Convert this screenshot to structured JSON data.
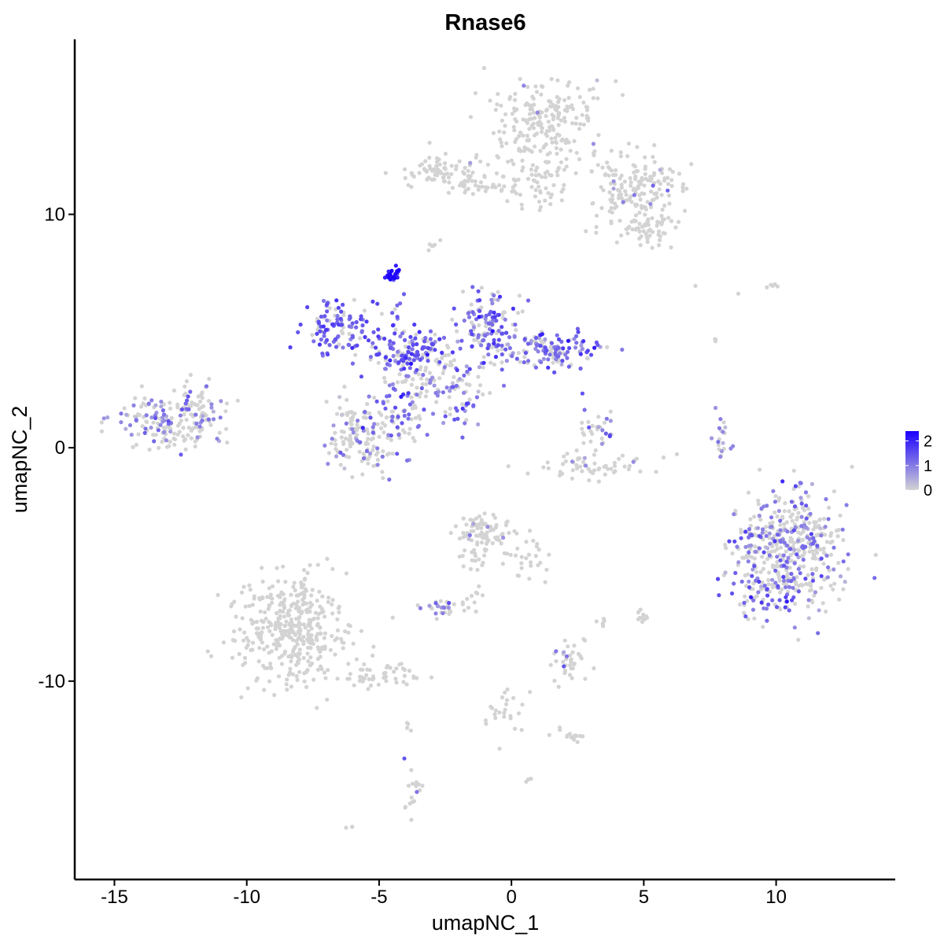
{
  "chart_data": {
    "type": "scatter",
    "title": "Rnase6",
    "xlabel": "umapNC_1",
    "ylabel": "umapNC_2",
    "xlim": [
      -16.5,
      14.5
    ],
    "ylim": [
      -18.5,
      17.5
    ],
    "x_ticks": [
      {
        "value": -15,
        "label": "-15"
      },
      {
        "value": -10,
        "label": "-10"
      },
      {
        "value": -5,
        "label": "-5"
      },
      {
        "value": 0,
        "label": "0"
      },
      {
        "value": 5,
        "label": "5"
      },
      {
        "value": 10,
        "label": "10"
      }
    ],
    "y_ticks": [
      {
        "value": 10,
        "label": "10"
      },
      {
        "value": 0,
        "label": "0"
      },
      {
        "value": -10,
        "label": "-10"
      }
    ],
    "grid": false,
    "legend": {
      "placement": "right",
      "type": "colorbar",
      "low_color": "#d3d3d3",
      "high_color": "#1a00ff",
      "range": [
        0,
        2.4
      ],
      "ticks": [
        {
          "value": 0,
          "label": "0"
        },
        {
          "value": 1,
          "label": "1"
        },
        {
          "value": 2,
          "label": "2"
        }
      ]
    },
    "point_color_low": "#d3d3d3",
    "point_color_high": "#1a00ff",
    "clusters": [
      {
        "cx": 1.2,
        "cy": 14.0,
        "sx": 1.1,
        "sy": 1.0,
        "n": 220,
        "expr_frac": 0.03,
        "expr_mean": 0.8
      },
      {
        "cx": 4.8,
        "cy": 11.1,
        "sx": 1.0,
        "sy": 0.7,
        "n": 160,
        "expr_frac": 0.03,
        "expr_mean": 0.8
      },
      {
        "cx": 5.2,
        "cy": 9.4,
        "sx": 0.6,
        "sy": 0.4,
        "n": 60,
        "expr_frac": 0.0,
        "expr_mean": 0.0
      },
      {
        "cx": -2.5,
        "cy": 11.7,
        "sx": 0.9,
        "sy": 0.4,
        "n": 90,
        "expr_frac": 0.03,
        "expr_mean": 0.8
      },
      {
        "cx": 1.0,
        "cy": 11.2,
        "sx": 0.7,
        "sy": 0.5,
        "n": 50,
        "expr_frac": 0.0,
        "expr_mean": 0.0
      },
      {
        "cx": -1.2,
        "cy": 11.2,
        "sx": 0.8,
        "sy": 0.15,
        "n": 25,
        "expr_frac": 0.0,
        "expr_mean": 0.0
      },
      {
        "cx": -2.9,
        "cy": 8.7,
        "sx": 0.15,
        "sy": 0.2,
        "n": 8,
        "expr_frac": 0.0,
        "expr_mean": 0.0
      },
      {
        "cx": -13.0,
        "cy": 1.1,
        "sx": 1.1,
        "sy": 0.55,
        "n": 170,
        "expr_frac": 0.35,
        "expr_mean": 0.9
      },
      {
        "cx": -11.8,
        "cy": 2.1,
        "sx": 0.5,
        "sy": 0.4,
        "n": 30,
        "expr_frac": 0.2,
        "expr_mean": 0.8
      },
      {
        "cx": -6.5,
        "cy": 5.2,
        "sx": 0.7,
        "sy": 0.6,
        "n": 110,
        "expr_frac": 0.75,
        "expr_mean": 1.3
      },
      {
        "cx": -4.0,
        "cy": 4.1,
        "sx": 1.0,
        "sy": 0.45,
        "n": 140,
        "expr_frac": 0.7,
        "expr_mean": 1.3
      },
      {
        "cx": -4.5,
        "cy": 7.4,
        "sx": 0.12,
        "sy": 0.12,
        "n": 22,
        "expr_frac": 1.0,
        "expr_mean": 2.3
      },
      {
        "cx": -4.3,
        "cy": 5.8,
        "sx": 0.1,
        "sy": 0.5,
        "n": 10,
        "expr_frac": 0.8,
        "expr_mean": 1.2
      },
      {
        "cx": -0.9,
        "cy": 5.3,
        "sx": 0.6,
        "sy": 0.7,
        "n": 120,
        "expr_frac": 0.6,
        "expr_mean": 1.2
      },
      {
        "cx": 1.4,
        "cy": 4.2,
        "sx": 0.9,
        "sy": 0.4,
        "n": 140,
        "expr_frac": 0.6,
        "expr_mean": 1.2
      },
      {
        "cx": -2.6,
        "cy": 2.8,
        "sx": 0.9,
        "sy": 0.6,
        "n": 100,
        "expr_frac": 0.35,
        "expr_mean": 1.0
      },
      {
        "cx": -5.7,
        "cy": 0.6,
        "sx": 0.8,
        "sy": 0.8,
        "n": 150,
        "expr_frac": 0.25,
        "expr_mean": 1.0
      },
      {
        "cx": -4.3,
        "cy": 1.6,
        "sx": 0.5,
        "sy": 1.0,
        "n": 60,
        "expr_frac": 0.55,
        "expr_mean": 1.2
      },
      {
        "cx": -2.1,
        "cy": 1.5,
        "sx": 0.5,
        "sy": 0.5,
        "n": 20,
        "expr_frac": 0.6,
        "expr_mean": 1.1
      },
      {
        "cx": 3.2,
        "cy": 0.8,
        "sx": 0.35,
        "sy": 0.5,
        "n": 30,
        "expr_frac": 0.4,
        "expr_mean": 1.1
      },
      {
        "cx": 3.3,
        "cy": -0.8,
        "sx": 1.0,
        "sy": 0.3,
        "n": 60,
        "expr_frac": 0.1,
        "expr_mean": 0.8
      },
      {
        "cx": 8.0,
        "cy": 0.4,
        "sx": 0.2,
        "sy": 0.6,
        "n": 20,
        "expr_frac": 0.7,
        "expr_mean": 1.0
      },
      {
        "cx": 10.6,
        "cy": -4.4,
        "sx": 1.0,
        "sy": 1.3,
        "n": 420,
        "expr_frac": 0.35,
        "expr_mean": 1.0
      },
      {
        "cx": -8.2,
        "cy": -7.8,
        "sx": 1.0,
        "sy": 1.2,
        "n": 400,
        "expr_frac": 0.0,
        "expr_mean": 0.0
      },
      {
        "cx": -5.0,
        "cy": -9.8,
        "sx": 0.9,
        "sy": 0.3,
        "n": 50,
        "expr_frac": 0.0,
        "expr_mean": 0.0
      },
      {
        "cx": -1.1,
        "cy": -3.7,
        "sx": 0.4,
        "sy": 0.55,
        "n": 90,
        "expr_frac": 0.03,
        "expr_mean": 0.8
      },
      {
        "cx": 0.7,
        "cy": -4.6,
        "sx": 0.5,
        "sy": 0.5,
        "n": 30,
        "expr_frac": 0.0,
        "expr_mean": 0.0
      },
      {
        "cx": -1.5,
        "cy": -5.5,
        "sx": 0.25,
        "sy": 0.8,
        "n": 20,
        "expr_frac": 0.0,
        "expr_mean": 0.0
      },
      {
        "cx": -2.6,
        "cy": -6.8,
        "sx": 0.4,
        "sy": 0.2,
        "n": 30,
        "expr_frac": 0.3,
        "expr_mean": 0.9
      },
      {
        "cx": 2.3,
        "cy": -9.1,
        "sx": 0.5,
        "sy": 0.4,
        "n": 40,
        "expr_frac": 0.2,
        "expr_mean": 0.9
      },
      {
        "cx": 5.0,
        "cy": -7.2,
        "sx": 0.12,
        "sy": 0.2,
        "n": 12,
        "expr_frac": 0.0,
        "expr_mean": 0.0
      },
      {
        "cx": 3.4,
        "cy": -7.6,
        "sx": 0.1,
        "sy": 0.2,
        "n": 6,
        "expr_frac": 0.0,
        "expr_mean": 0.0
      },
      {
        "cx": -0.4,
        "cy": -11.1,
        "sx": 0.4,
        "sy": 0.7,
        "n": 25,
        "expr_frac": 0.0,
        "expr_mean": 0.0
      },
      {
        "cx": 2.3,
        "cy": -12.4,
        "sx": 0.3,
        "sy": 0.15,
        "n": 15,
        "expr_frac": 0.0,
        "expr_mean": 0.0
      },
      {
        "cx": -3.7,
        "cy": -14.6,
        "sx": 0.2,
        "sy": 0.6,
        "n": 20,
        "expr_frac": 0.05,
        "expr_mean": 0.8
      },
      {
        "cx": -3.9,
        "cy": -11.9,
        "sx": 0.05,
        "sy": 0.15,
        "n": 4,
        "expr_frac": 0.0,
        "expr_mean": 0.0
      },
      {
        "cx": -6.1,
        "cy": -16.2,
        "sx": 0.08,
        "sy": 0.05,
        "n": 3,
        "expr_frac": 0.0,
        "expr_mean": 0.0
      },
      {
        "cx": 0.6,
        "cy": -14.2,
        "sx": 0.08,
        "sy": 0.05,
        "n": 3,
        "expr_frac": 0.0,
        "expr_mean": 0.0
      },
      {
        "cx": 9.8,
        "cy": 6.8,
        "sx": 0.3,
        "sy": 0.15,
        "n": 5,
        "expr_frac": 0.0,
        "expr_mean": 0.0
      },
      {
        "cx": 7.7,
        "cy": 4.7,
        "sx": 0.05,
        "sy": 0.1,
        "n": 3,
        "expr_frac": 0.0,
        "expr_mean": 0.0
      },
      {
        "cx": 7.0,
        "cy": 6.9,
        "sx": 0.05,
        "sy": 0.05,
        "n": 1,
        "expr_frac": 0.0,
        "expr_mean": 0.0
      },
      {
        "cx": 8.5,
        "cy": 6.6,
        "sx": 0.05,
        "sy": 0.05,
        "n": 1,
        "expr_frac": 0.0,
        "expr_mean": 0.0
      },
      {
        "cx": 8.9,
        "cy": -4.3,
        "sx": 0.4,
        "sy": 0.6,
        "n": 25,
        "expr_frac": 0.4,
        "expr_mean": 1.0
      },
      {
        "cx": 9.5,
        "cy": -6.3,
        "sx": 0.8,
        "sy": 0.5,
        "n": 60,
        "expr_frac": 0.45,
        "expr_mean": 1.1
      }
    ]
  }
}
